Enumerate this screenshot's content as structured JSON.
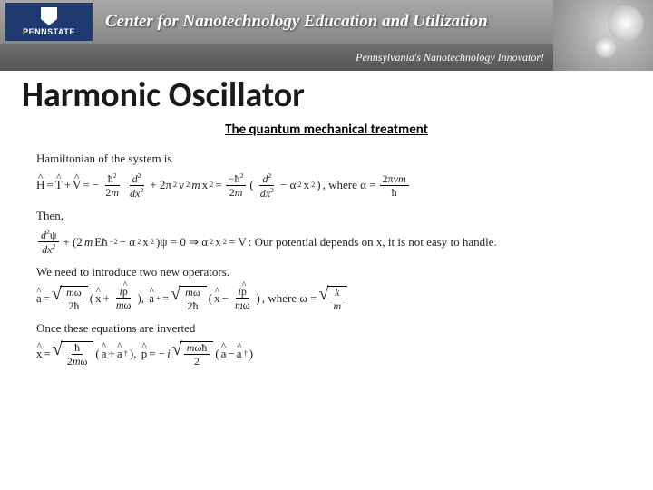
{
  "header": {
    "logo_text": "PENNSTATE",
    "center_title": "Center for Nanotechnology Education and Utilization",
    "tagline": "Pennsylvania's Nanotechnology Innovator!",
    "top_gradient": [
      "#a8a8a8",
      "#888888"
    ],
    "bottom_gradient": [
      "#707070",
      "#555555"
    ],
    "logo_bg": "#1e3a6e"
  },
  "slide": {
    "title": "Harmonic Oscillator",
    "subtitle": "The quantum mechanical treatment",
    "title_fontsize": 38,
    "subtitle_fontsize": 15,
    "body_fontsize": 13,
    "text_color": "#222222",
    "background": "#ffffff"
  },
  "lines": {
    "l1": "Hamiltonian of the system is",
    "l2_note": ", where α =",
    "l3": "Then,",
    "l4_note": ":  Our potential depends on x, it is not easy to handle.",
    "l5": "We need to introduce two new operators.",
    "l6_note": ", where ω =",
    "l7": "Once these equations are inverted"
  },
  "symbols": {
    "hbar": "ħ",
    "psi": "ψ",
    "alpha": "α",
    "omega": "ω",
    "pi": "π",
    "nu": "ν",
    "dagger": "†",
    "implies": "⇒"
  }
}
